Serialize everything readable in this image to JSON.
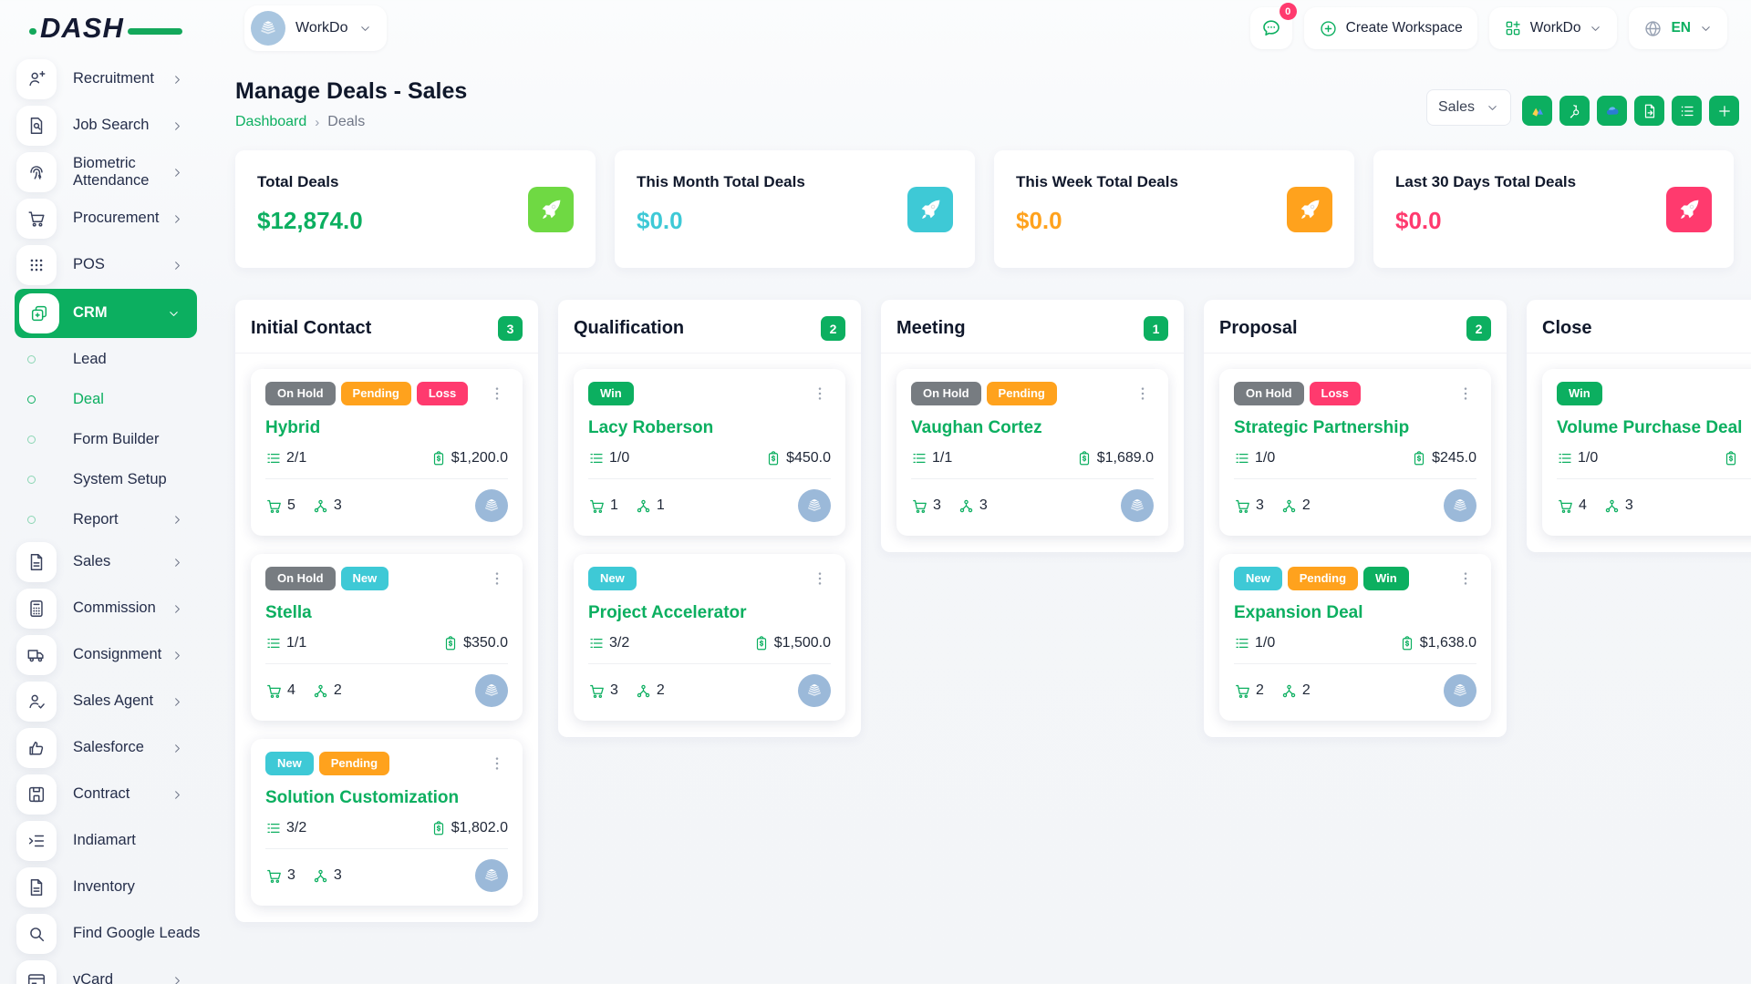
{
  "brand": {
    "logo_text": "DASH"
  },
  "topbar": {
    "workspace_label": "WorkDo",
    "messages_badge": "0",
    "create_workspace_label": "Create Workspace",
    "workspace_switcher_label": "WorkDo",
    "language": "EN"
  },
  "page": {
    "title": "Manage Deals - Sales",
    "breadcrumb": [
      "Dashboard",
      "Deals"
    ]
  },
  "toolbar": {
    "pipeline_select": "Sales",
    "buttons": [
      {
        "icon": "gdrive",
        "name": "google-drive-button"
      },
      {
        "icon": "hubspot",
        "name": "hubspot-button"
      },
      {
        "icon": "onedrive",
        "name": "onedrive-button"
      },
      {
        "icon": "file-export",
        "name": "export-button"
      },
      {
        "icon": "list",
        "name": "list-view-button"
      },
      {
        "icon": "plus",
        "name": "add-deal-button"
      }
    ]
  },
  "stats": [
    {
      "label": "Total Deals",
      "value": "$12,874.0",
      "value_color": "#0caf60",
      "icon_bg": "#6fd943"
    },
    {
      "label": "This Month Total Deals",
      "value": "$0.0",
      "value_color": "#3ec9d6",
      "icon_bg": "#3ec9d6"
    },
    {
      "label": "This Week Total Deals",
      "value": "$0.0",
      "value_color": "#ffa21d",
      "icon_bg": "#ffa21d"
    },
    {
      "label": "Last 30 Days Total Deals",
      "value": "$0.0",
      "value_color": "#ff3a6e",
      "icon_bg": "#ff3a6e"
    }
  ],
  "tag_colors": {
    "onhold": "#777c81",
    "pending": "#ffa21d",
    "loss": "#ff3a6e",
    "new": "#3ec9d6",
    "win": "#0caf60"
  },
  "sidebar": {
    "items": [
      {
        "icon": "person-plus",
        "label": "Recruitment",
        "chevron": "right"
      },
      {
        "icon": "doc-search",
        "label": "Job Search",
        "chevron": "right"
      },
      {
        "icon": "fingerprint",
        "label": "Biometric Attendance",
        "chevron": "right"
      },
      {
        "icon": "cart",
        "label": "Procurement",
        "chevron": "right"
      },
      {
        "icon": "grid-dots",
        "label": "POS",
        "chevron": "right"
      },
      {
        "icon": "layers",
        "label": "CRM",
        "chevron": "down",
        "active": true
      },
      {
        "type": "sub",
        "label": "Lead"
      },
      {
        "type": "sub",
        "label": "Deal",
        "active": true
      },
      {
        "type": "sub",
        "label": "Form Builder"
      },
      {
        "type": "sub",
        "label": "System Setup"
      },
      {
        "type": "sub",
        "label": "Report",
        "chevron": "right"
      },
      {
        "icon": "file",
        "label": "Sales",
        "chevron": "right"
      },
      {
        "icon": "calculator",
        "label": "Commission",
        "chevron": "right"
      },
      {
        "icon": "truck",
        "label": "Consignment",
        "chevron": "right"
      },
      {
        "icon": "person-check",
        "label": "Sales Agent",
        "chevron": "right"
      },
      {
        "icon": "thumbs-up",
        "label": "Salesforce",
        "chevron": "right"
      },
      {
        "icon": "floppy",
        "label": "Contract",
        "chevron": "right"
      },
      {
        "icon": "indent",
        "label": "Indiamart"
      },
      {
        "icon": "file",
        "label": "Inventory"
      },
      {
        "icon": "search",
        "label": "Find Google Leads"
      },
      {
        "icon": "credit-card",
        "label": "vCard",
        "chevron": "right"
      }
    ]
  },
  "board": {
    "columns": [
      {
        "title": "Initial Contact",
        "count": "3",
        "cards": [
          {
            "tags": [
              {
                "label": "On Hold",
                "type": "onhold"
              },
              {
                "label": "Pending",
                "type": "pending"
              },
              {
                "label": "Loss",
                "type": "loss"
              }
            ],
            "title": "Hybrid",
            "tasks": "2/1",
            "amount": "$1,200.0",
            "products": "5",
            "sources": "3"
          },
          {
            "tags": [
              {
                "label": "On Hold",
                "type": "onhold"
              },
              {
                "label": "New",
                "type": "new"
              }
            ],
            "title": "Stella",
            "tasks": "1/1",
            "amount": "$350.0",
            "products": "4",
            "sources": "2"
          },
          {
            "tags": [
              {
                "label": "New",
                "type": "new"
              },
              {
                "label": "Pending",
                "type": "pending"
              }
            ],
            "title": "Solution Customization",
            "tasks": "3/2",
            "amount": "$1,802.0",
            "products": "3",
            "sources": "3"
          }
        ]
      },
      {
        "title": "Qualification",
        "count": "2",
        "cards": [
          {
            "tags": [
              {
                "label": "Win",
                "type": "win"
              }
            ],
            "title": "Lacy Roberson",
            "tasks": "1/0",
            "amount": "$450.0",
            "products": "1",
            "sources": "1"
          },
          {
            "tags": [
              {
                "label": "New",
                "type": "new"
              }
            ],
            "title": "Project Accelerator",
            "tasks": "3/2",
            "amount": "$1,500.0",
            "products": "3",
            "sources": "2"
          }
        ]
      },
      {
        "title": "Meeting",
        "count": "1",
        "cards": [
          {
            "tags": [
              {
                "label": "On Hold",
                "type": "onhold"
              },
              {
                "label": "Pending",
                "type": "pending"
              }
            ],
            "title": "Vaughan Cortez",
            "tasks": "1/1",
            "amount": "$1,689.0",
            "products": "3",
            "sources": "3"
          }
        ]
      },
      {
        "title": "Proposal",
        "count": "2",
        "cards": [
          {
            "tags": [
              {
                "label": "On Hold",
                "type": "onhold"
              },
              {
                "label": "Loss",
                "type": "loss"
              }
            ],
            "title": "Strategic Partnership",
            "tasks": "1/0",
            "amount": "$245.0",
            "products": "3",
            "sources": "2"
          },
          {
            "tags": [
              {
                "label": "New",
                "type": "new"
              },
              {
                "label": "Pending",
                "type": "pending"
              },
              {
                "label": "Win",
                "type": "win"
              }
            ],
            "title": "Expansion Deal",
            "tasks": "1/0",
            "amount": "$1,638.0",
            "products": "2",
            "sources": "2"
          }
        ]
      },
      {
        "title": "Close",
        "count": "",
        "cards": [
          {
            "tags": [
              {
                "label": "Win",
                "type": "win"
              }
            ],
            "title": "Volume Purchase Deal",
            "tasks": "1/0",
            "amount": "",
            "products": "4",
            "sources": "3"
          }
        ]
      }
    ]
  }
}
